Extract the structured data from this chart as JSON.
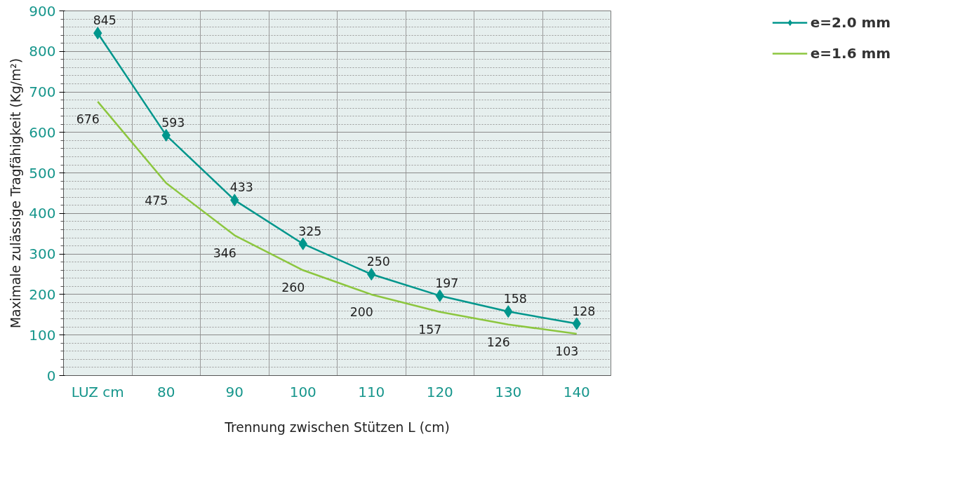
{
  "chart_data": {
    "type": "line",
    "xlabel": "Trennung zwischen Stützen L (cm)",
    "ylabel": "Maximale zulässige Tragfähigkeit (Kg/m²)",
    "categories": [
      "LUZ cm",
      "80",
      "90",
      "100",
      "110",
      "120",
      "130",
      "140"
    ],
    "series": [
      {
        "name": "e=2.0 mm",
        "color": "#00968c",
        "marker": "diamond",
        "values": [
          845,
          593,
          433,
          325,
          250,
          197,
          158,
          128
        ]
      },
      {
        "name": "e=1.6 mm",
        "color": "#8cc63f",
        "marker": "none",
        "values": [
          676,
          475,
          346,
          260,
          200,
          157,
          126,
          103
        ]
      }
    ],
    "ylim": [
      0,
      900
    ],
    "yticks": [
      0,
      100,
      200,
      300,
      400,
      500,
      600,
      700,
      800,
      900
    ],
    "grid": true,
    "legend": "top right",
    "data_labels": true,
    "line_style": "solid"
  }
}
